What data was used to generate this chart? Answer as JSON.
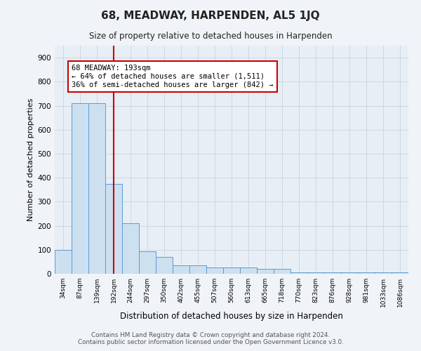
{
  "title": "68, MEADWAY, HARPENDEN, AL5 1JQ",
  "subtitle": "Size of property relative to detached houses in Harpenden",
  "xlabel": "Distribution of detached houses by size in Harpenden",
  "ylabel": "Number of detached properties",
  "bar_labels": [
    "34sqm",
    "87sqm",
    "139sqm",
    "192sqm",
    "244sqm",
    "297sqm",
    "350sqm",
    "402sqm",
    "455sqm",
    "507sqm",
    "560sqm",
    "613sqm",
    "665sqm",
    "718sqm",
    "770sqm",
    "823sqm",
    "876sqm",
    "928sqm",
    "981sqm",
    "1033sqm",
    "1086sqm"
  ],
  "bar_values": [
    100,
    710,
    710,
    375,
    210,
    95,
    70,
    35,
    35,
    25,
    25,
    25,
    20,
    20,
    5,
    5,
    5,
    5,
    5,
    5,
    5
  ],
  "bar_color": "#cce0f0",
  "bar_edge_color": "#5b9bd5",
  "vline_x_idx": 3,
  "vline_color": "#cc0000",
  "annotation_title": "68 MEADWAY: 193sqm",
  "annotation_line1": "← 64% of detached houses are smaller (1,511)",
  "annotation_line2": "36% of semi-detached houses are larger (842) →",
  "annotation_box_color": "#cc0000",
  "ylim": [
    0,
    950
  ],
  "yticks": [
    0,
    100,
    200,
    300,
    400,
    500,
    600,
    700,
    800,
    900
  ],
  "background_color": "#f0f4f8",
  "plot_bg_color": "#e8eef5",
  "grid_color": "#c8d4e0",
  "footer_line1": "Contains HM Land Registry data © Crown copyright and database right 2024.",
  "footer_line2": "Contains public sector information licensed under the Open Government Licence v3.0."
}
